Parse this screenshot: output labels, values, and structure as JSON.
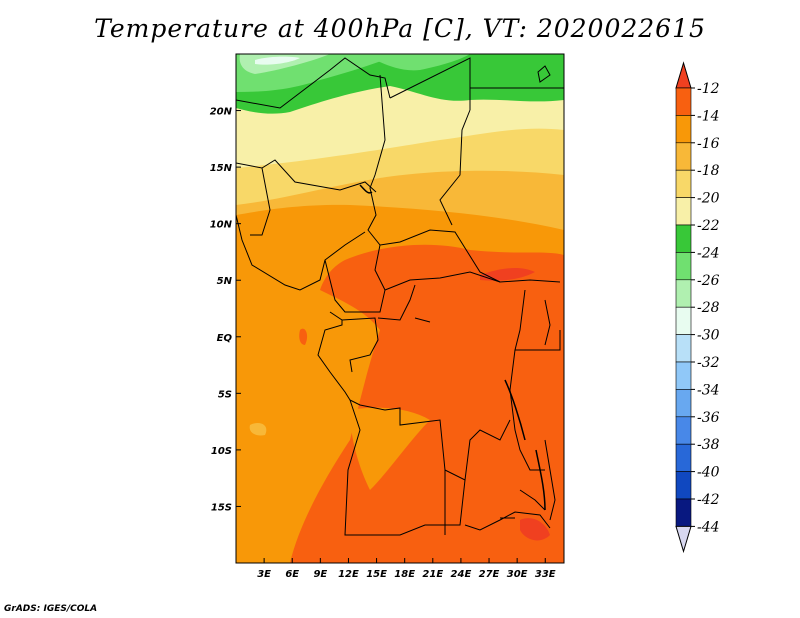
{
  "title": "Temperature at 400hPa [C], VT: 2020022615",
  "credit": "GrADS: IGES/COLA",
  "map": {
    "lat_labels": [
      "20N",
      "15N",
      "10N",
      "5N",
      "EQ",
      "5S",
      "10S",
      "15S"
    ],
    "lon_labels": [
      "3E",
      "6E",
      "9E",
      "12E",
      "15E",
      "18E",
      "21E",
      "24E",
      "27E",
      "30E",
      "33E"
    ],
    "lat_values": [
      20,
      15,
      10,
      5,
      0,
      -5,
      -10,
      -15
    ],
    "lon_values": [
      3,
      6,
      9,
      12,
      15,
      18,
      21,
      24,
      27,
      30,
      33
    ],
    "lon_range": [
      0,
      35
    ],
    "lat_range": [
      -20,
      25
    ]
  },
  "colorbar": {
    "labels": [
      "-12",
      "-14",
      "-16",
      "-18",
      "-20",
      "-22",
      "-24",
      "-26",
      "-28",
      "-30",
      "-32",
      "-34",
      "-36",
      "-38",
      "-40",
      "-42",
      "-44"
    ],
    "colors": [
      "#f04020",
      "#f86010",
      "#f89808",
      "#f8b838",
      "#f8d868",
      "#f8f0a8",
      "#38c838",
      "#70e070",
      "#b0f0b0",
      "#e8fcf0",
      "#b8e0f8",
      "#90c8f8",
      "#68a8f0",
      "#4888e8",
      "#2868d8",
      "#1048c0",
      "#081880",
      "#d8d8f0"
    ]
  }
}
